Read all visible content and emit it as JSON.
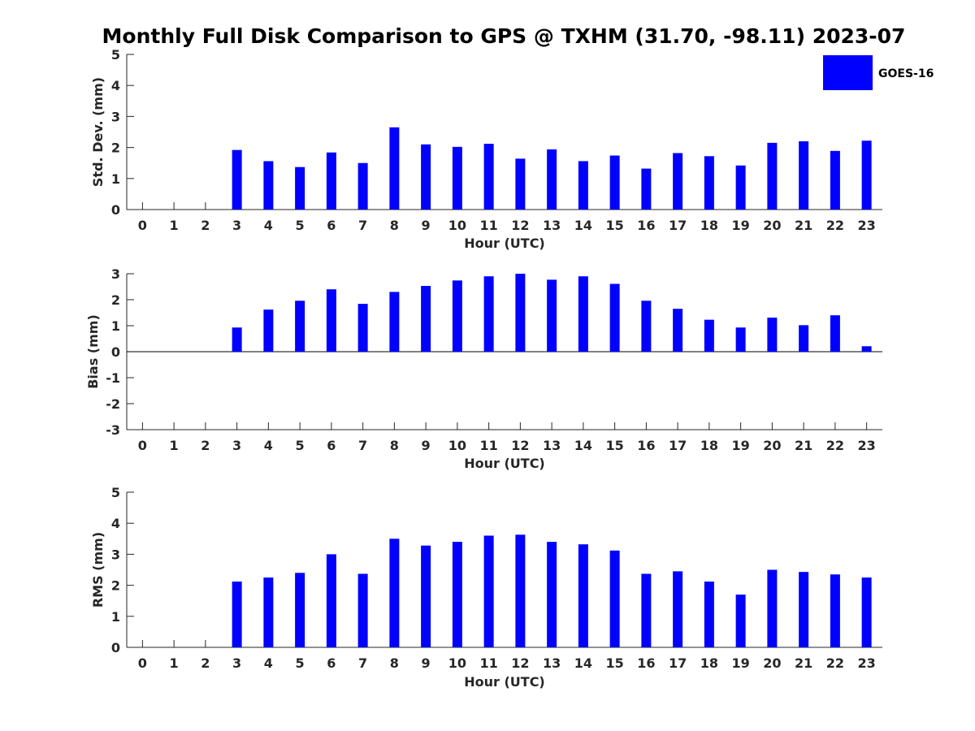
{
  "title": "Monthly Full Disk Comparison to GPS @ TXHM (31.70, -98.11) 2023-07",
  "colors": {
    "bar": "#0000ff",
    "axis": "#262626",
    "background": "#ffffff"
  },
  "chart_data": [
    {
      "type": "bar",
      "title": "Monthly Full Disk Comparison to GPS @ TXHM (31.70, -98.11) 2023-07",
      "xlabel": "Hour (UTC)",
      "ylabel": "Std. Dev. (mm)",
      "ylim": [
        0,
        5
      ],
      "yticks": [
        "0",
        "1",
        "2",
        "3",
        "4",
        "5"
      ],
      "categories": [
        "0",
        "1",
        "2",
        "3",
        "4",
        "5",
        "6",
        "7",
        "8",
        "9",
        "10",
        "11",
        "12",
        "13",
        "14",
        "15",
        "16",
        "17",
        "18",
        "19",
        "20",
        "21",
        "22",
        "23"
      ],
      "series": [
        {
          "name": "GOES-16",
          "values": [
            null,
            null,
            null,
            1.92,
            1.56,
            1.37,
            1.84,
            1.5,
            2.65,
            2.1,
            2.02,
            2.12,
            1.64,
            1.94,
            1.56,
            1.74,
            1.32,
            1.82,
            1.72,
            1.42,
            2.15,
            2.2,
            1.89,
            2.22
          ]
        }
      ],
      "legend": {
        "position": "top-right",
        "entries": [
          "GOES-16"
        ]
      },
      "grid": false
    },
    {
      "type": "bar",
      "xlabel": "Hour (UTC)",
      "ylabel": "Bias (mm)",
      "ylim": [
        -3,
        3
      ],
      "yticks": [
        "-3",
        "-2",
        "-1",
        "0",
        "1",
        "2",
        "3"
      ],
      "categories": [
        "0",
        "1",
        "2",
        "3",
        "4",
        "5",
        "6",
        "7",
        "8",
        "9",
        "10",
        "11",
        "12",
        "13",
        "14",
        "15",
        "16",
        "17",
        "18",
        "19",
        "20",
        "21",
        "22",
        "23"
      ],
      "series": [
        {
          "name": "GOES-16",
          "values": [
            null,
            null,
            null,
            0.93,
            1.62,
            1.96,
            2.4,
            1.84,
            2.3,
            2.53,
            2.74,
            2.9,
            3.0,
            2.77,
            2.9,
            2.61,
            1.96,
            1.65,
            1.23,
            0.93,
            1.31,
            1.02,
            1.4,
            0.21
          ]
        }
      ],
      "grid": false
    },
    {
      "type": "bar",
      "xlabel": "Hour (UTC)",
      "ylabel": "RMS (mm)",
      "ylim": [
        0,
        5
      ],
      "yticks": [
        "0",
        "1",
        "2",
        "3",
        "4",
        "5"
      ],
      "categories": [
        "0",
        "1",
        "2",
        "3",
        "4",
        "5",
        "6",
        "7",
        "8",
        "9",
        "10",
        "11",
        "12",
        "13",
        "14",
        "15",
        "16",
        "17",
        "18",
        "19",
        "20",
        "21",
        "22",
        "23"
      ],
      "series": [
        {
          "name": "GOES-16",
          "values": [
            null,
            null,
            null,
            2.12,
            2.25,
            2.4,
            3.0,
            2.37,
            3.5,
            3.28,
            3.4,
            3.6,
            3.63,
            3.4,
            3.32,
            3.12,
            2.37,
            2.45,
            2.12,
            1.7,
            2.5,
            2.43,
            2.35,
            2.25
          ]
        }
      ],
      "grid": false
    }
  ]
}
